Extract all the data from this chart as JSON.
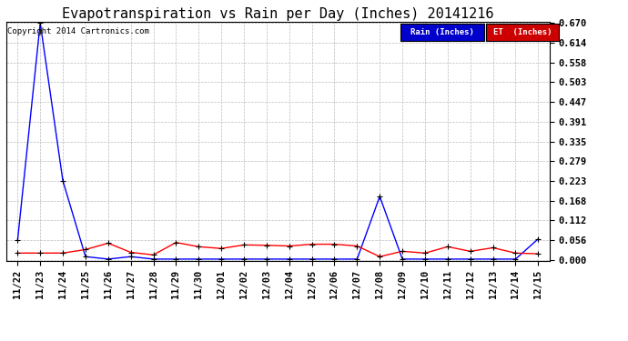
{
  "title": "Evapotranspiration vs Rain per Day (Inches) 20141216",
  "copyright": "Copyright 2014 Cartronics.com",
  "labels": [
    "11/22",
    "11/23",
    "11/24",
    "11/25",
    "11/26",
    "11/27",
    "11/28",
    "11/29",
    "11/30",
    "12/01",
    "12/02",
    "12/03",
    "12/04",
    "12/05",
    "12/06",
    "12/07",
    "12/08",
    "12/09",
    "12/10",
    "12/11",
    "12/12",
    "12/13",
    "12/14",
    "12/15"
  ],
  "rain": [
    0.056,
    0.67,
    0.224,
    0.01,
    0.003,
    0.01,
    0.003,
    0.003,
    0.003,
    0.003,
    0.003,
    0.003,
    0.003,
    0.003,
    0.003,
    0.003,
    0.18,
    0.003,
    0.003,
    0.003,
    0.003,
    0.003,
    0.003,
    0.06
  ],
  "et": [
    0.02,
    0.02,
    0.02,
    0.03,
    0.048,
    0.022,
    0.015,
    0.05,
    0.038,
    0.033,
    0.043,
    0.042,
    0.04,
    0.045,
    0.045,
    0.04,
    0.01,
    0.025,
    0.02,
    0.038,
    0.025,
    0.035,
    0.02,
    0.018
  ],
  "ylim": [
    0.0,
    0.67
  ],
  "yticks": [
    0.0,
    0.056,
    0.112,
    0.168,
    0.223,
    0.279,
    0.335,
    0.391,
    0.447,
    0.503,
    0.558,
    0.614,
    0.67
  ],
  "rain_color": "#0000ff",
  "et_color": "#ff0000",
  "background_color": "#ffffff",
  "grid_color": "#bbbbbb",
  "title_fontsize": 11,
  "tick_fontsize": 7.5,
  "legend_rain_bg": "#0000cc",
  "legend_et_bg": "#cc0000"
}
